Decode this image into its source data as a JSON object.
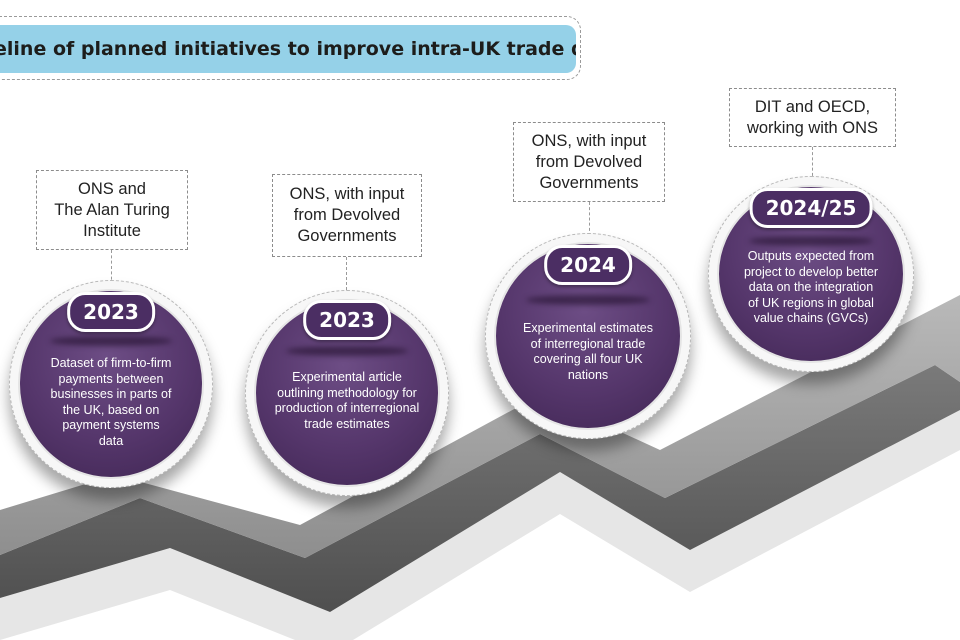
{
  "title": "eline of planned initiatives to improve intra-UK trade data",
  "milestones": [
    {
      "organisation": "ONS and\nThe Alan Turing\nInstitute",
      "year": "2023",
      "description": "Dataset of firm-to-firm\npayments between\nbusinesses in parts of\nthe UK, based on\npayment systems\ndata"
    },
    {
      "organisation": "ONS, with input\nfrom Devolved\nGovernments",
      "year": "2023",
      "description": "Experimental article\noutlining methodology for\nproduction of interregional\ntrade estimates"
    },
    {
      "organisation": "ONS, with input\nfrom Devolved\nGovernments",
      "year": "2024",
      "description": "Experimental estimates\nof interregional trade\ncovering all four UK\nnations"
    },
    {
      "organisation": "DIT and OECD,\nworking with ONS",
      "year": "2024/25",
      "description": "Outputs expected from\nproject to develop better\ndata on the integration\nof UK regions in global\nvalue chains (GVCs)"
    }
  ],
  "colors": {
    "title_fill": "#95d1e8",
    "disc_fill": "#55366b",
    "ribbon_top": "#9a9a9a",
    "ribbon_front": "#666666"
  }
}
